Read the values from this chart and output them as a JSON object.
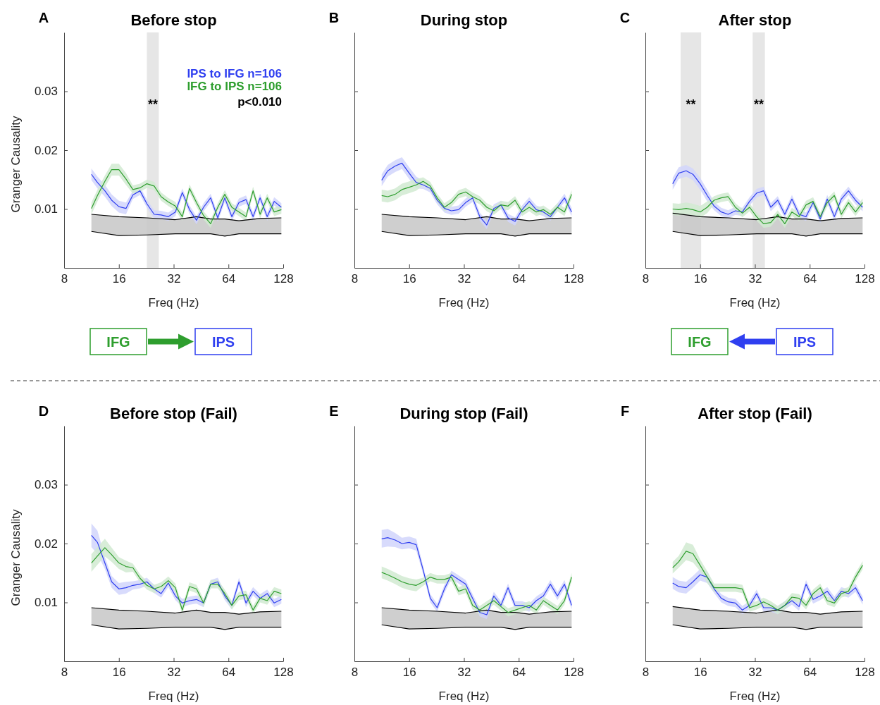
{
  "chart_data": [
    {
      "type": "line",
      "title": "Before stop",
      "xlabel": "Freq (Hz)",
      "ylabel": "Granger Causality",
      "xlim": [
        8,
        128
      ],
      "xticks": [
        8,
        16,
        32,
        64,
        128
      ],
      "ylim": [
        0,
        0.04
      ],
      "yticks": [
        0.01,
        0.02,
        0.03
      ],
      "log": "x",
      "legend": "top right",
      "x": [
        11.3,
        12.2,
        13.4,
        14.6,
        16,
        17.5,
        19.1,
        20.9,
        22.8,
        25,
        27.3,
        29.9,
        32.7,
        35.7,
        39.1,
        42.7,
        46.7,
        51.1,
        55.9,
        61.1,
        66.8,
        73.1,
        79.9,
        87.4,
        95.5,
        104.5,
        114.2,
        125
      ],
      "annotations": [
        "A",
        "**",
        "p<0.010",
        "IFG",
        "IPS"
      ],
      "bands": [
        {
          "axis": "x",
          "from": 22.8,
          "to": 26.5,
          "color": "#e6e6e6"
        }
      ],
      "series": [
        {
          "color": "#000000",
          "x": [
            11.3,
            16,
            22.8,
            32.7,
            42.7,
            51.1,
            61.1,
            73.1,
            95.5,
            125
          ],
          "values": [
            0.0091,
            0.0087,
            0.0085,
            0.0082,
            0.0087,
            0.0083,
            0.0083,
            0.008,
            0.0084,
            0.0085
          ],
          "lower": [
            0.0062,
            0.0055,
            0.0056,
            0.0058,
            0.0058,
            0.0058,
            0.0054,
            0.0058,
            0.0058,
            0.0058
          ],
          "upper": [
            0.0091,
            0.0087,
            0.0085,
            0.0082,
            0.0087,
            0.0083,
            0.0083,
            0.008,
            0.0084,
            0.0085
          ]
        },
        {
          "color": "#000000",
          "x": [
            11.3,
            16,
            22.8,
            32.7,
            42.7,
            51.1,
            61.1,
            73.1,
            95.5,
            125
          ],
          "values": [
            0.0062,
            0.0055,
            0.0056,
            0.0058,
            0.0058,
            0.0058,
            0.0054,
            0.0058,
            0.0058,
            0.0058
          ]
        },
        {
          "name": "IPS to IFG n=106",
          "color": "#2f3ff0",
          "values": [
            0.0159,
            0.0145,
            0.0131,
            0.0115,
            0.0104,
            0.0101,
            0.0124,
            0.0131,
            0.0109,
            0.0091,
            0.009,
            0.0087,
            0.0095,
            0.0128,
            0.0099,
            0.0081,
            0.0103,
            0.0119,
            0.0085,
            0.0119,
            0.0087,
            0.0111,
            0.0116,
            0.0087,
            0.0119,
            0.0087,
            0.0113,
            0.0103
          ],
          "lower": [
            0.0149,
            0.0135,
            0.0121,
            0.0105,
            0.0094,
            0.0091,
            0.0117,
            0.0124,
            0.0102,
            0.0084,
            0.0083,
            0.008,
            0.0088,
            0.0121,
            0.0092,
            0.0074,
            0.0096,
            0.0112,
            0.0078,
            0.0112,
            0.008,
            0.0104,
            0.0109,
            0.008,
            0.0112,
            0.008,
            0.0106,
            0.0096
          ],
          "upper": [
            0.0169,
            0.0155,
            0.0141,
            0.0125,
            0.0114,
            0.0111,
            0.0131,
            0.0138,
            0.0116,
            0.0098,
            0.0097,
            0.0094,
            0.0102,
            0.0135,
            0.0106,
            0.0088,
            0.011,
            0.0126,
            0.0092,
            0.0126,
            0.0094,
            0.0118,
            0.0123,
            0.0094,
            0.0126,
            0.0094,
            0.012,
            0.011
          ]
        },
        {
          "name": "IFG to IPS n=106",
          "color": "#2e9e2e",
          "values": [
            0.0101,
            0.0123,
            0.0147,
            0.0167,
            0.0167,
            0.0151,
            0.0133,
            0.0136,
            0.0143,
            0.0139,
            0.0121,
            0.0112,
            0.0105,
            0.0087,
            0.0135,
            0.0111,
            0.0089,
            0.0075,
            0.0103,
            0.0125,
            0.0103,
            0.0095,
            0.0087,
            0.0131,
            0.0091,
            0.0119,
            0.0095,
            0.0099
          ],
          "lower": [
            0.0091,
            0.0113,
            0.0137,
            0.0157,
            0.0157,
            0.0141,
            0.0126,
            0.0129,
            0.0136,
            0.0132,
            0.0114,
            0.0105,
            0.0098,
            0.008,
            0.0128,
            0.0104,
            0.0082,
            0.0068,
            0.0096,
            0.0118,
            0.0096,
            0.0088,
            0.008,
            0.0124,
            0.0084,
            0.0112,
            0.0088,
            0.0092
          ],
          "upper": [
            0.0111,
            0.0133,
            0.0157,
            0.0177,
            0.0177,
            0.0161,
            0.014,
            0.0143,
            0.015,
            0.0146,
            0.0128,
            0.0119,
            0.0112,
            0.0094,
            0.0142,
            0.0118,
            0.0096,
            0.0082,
            0.011,
            0.0132,
            0.011,
            0.0102,
            0.0094,
            0.0138,
            0.0098,
            0.0126,
            0.0102,
            0.0106
          ]
        }
      ]
    },
    {
      "type": "line",
      "title": "During stop",
      "xlabel": "Freq (Hz)",
      "xlim": [
        8,
        128
      ],
      "xticks": [
        8,
        16,
        32,
        64,
        128
      ],
      "ylim": [
        0,
        0.04
      ],
      "yticks": [
        0.01,
        0.02,
        0.03
      ],
      "log": "x",
      "tick_labels": "x",
      "x": [
        11.3,
        12.2,
        13.4,
        14.6,
        16,
        17.5,
        19.1,
        20.9,
        22.8,
        25,
        27.3,
        29.9,
        32.7,
        35.7,
        39.1,
        42.7,
        46.7,
        51.1,
        55.9,
        61.1,
        66.8,
        73.1,
        79.9,
        87.4,
        95.5,
        104.5,
        114.2,
        125
      ],
      "annotations": [
        "B"
      ],
      "series": [
        {
          "color": "#000000",
          "x": [
            11.3,
            16,
            22.8,
            32.7,
            42.7,
            51.1,
            61.1,
            73.1,
            95.5,
            125
          ],
          "values": [
            0.0091,
            0.0087,
            0.0085,
            0.0082,
            0.0087,
            0.0083,
            0.0083,
            0.008,
            0.0084,
            0.0085
          ],
          "lower": [
            0.0062,
            0.0055,
            0.0056,
            0.0058,
            0.0058,
            0.0058,
            0.0054,
            0.0058,
            0.0058,
            0.0058
          ],
          "upper": [
            0.0091,
            0.0087,
            0.0085,
            0.0082,
            0.0087,
            0.0083,
            0.0083,
            0.008,
            0.0084,
            0.0085
          ]
        },
        {
          "color": "#000000",
          "x": [
            11.3,
            16,
            22.8,
            32.7,
            42.7,
            51.1,
            61.1,
            73.1,
            95.5,
            125
          ],
          "values": [
            0.0062,
            0.0055,
            0.0056,
            0.0058,
            0.0058,
            0.0058,
            0.0054,
            0.0058,
            0.0058,
            0.0058
          ]
        },
        {
          "color": "#2f3ff0",
          "values": [
            0.0149,
            0.0165,
            0.0173,
            0.0178,
            0.0161,
            0.0145,
            0.0141,
            0.0135,
            0.0115,
            0.0101,
            0.0097,
            0.0099,
            0.0111,
            0.0119,
            0.0087,
            0.0073,
            0.0101,
            0.0107,
            0.0085,
            0.0079,
            0.0099,
            0.0113,
            0.0099,
            0.0095,
            0.0087,
            0.0103,
            0.0119,
            0.0095
          ],
          "lower": [
            0.0139,
            0.0155,
            0.0163,
            0.0168,
            0.0151,
            0.0135,
            0.0134,
            0.0128,
            0.0108,
            0.0094,
            0.009,
            0.0092,
            0.0104,
            0.0112,
            0.008,
            0.0066,
            0.0094,
            0.01,
            0.0078,
            0.0072,
            0.0092,
            0.0106,
            0.0092,
            0.0088,
            0.008,
            0.0096,
            0.0112,
            0.0088
          ],
          "upper": [
            0.0159,
            0.0175,
            0.0183,
            0.0188,
            0.0171,
            0.0155,
            0.0148,
            0.0142,
            0.0122,
            0.0108,
            0.0104,
            0.0106,
            0.0118,
            0.0126,
            0.0094,
            0.008,
            0.0108,
            0.0114,
            0.0092,
            0.0086,
            0.0106,
            0.012,
            0.0106,
            0.0102,
            0.0094,
            0.011,
            0.0126,
            0.0102
          ]
        },
        {
          "color": "#2e9e2e",
          "values": [
            0.0123,
            0.0121,
            0.0125,
            0.0133,
            0.0137,
            0.0141,
            0.0147,
            0.0139,
            0.0119,
            0.0103,
            0.0111,
            0.0125,
            0.0129,
            0.0121,
            0.0115,
            0.0103,
            0.0097,
            0.0107,
            0.0105,
            0.0115,
            0.0095,
            0.0103,
            0.0095,
            0.0099,
            0.0091,
            0.0103,
            0.0095,
            0.0125
          ],
          "lower": [
            0.0113,
            0.0111,
            0.0115,
            0.0123,
            0.0127,
            0.0131,
            0.014,
            0.0132,
            0.0112,
            0.0096,
            0.0104,
            0.0118,
            0.0122,
            0.0114,
            0.0108,
            0.0096,
            0.009,
            0.01,
            0.0098,
            0.0108,
            0.0088,
            0.0096,
            0.0088,
            0.0092,
            0.0084,
            0.0096,
            0.0088,
            0.0118
          ],
          "upper": [
            0.0133,
            0.0131,
            0.0135,
            0.0143,
            0.0147,
            0.0151,
            0.0154,
            0.0146,
            0.0126,
            0.011,
            0.0118,
            0.0132,
            0.0136,
            0.0128,
            0.0122,
            0.011,
            0.0104,
            0.0114,
            0.0112,
            0.0122,
            0.0102,
            0.011,
            0.0102,
            0.0106,
            0.0098,
            0.011,
            0.0102,
            0.0132
          ]
        }
      ]
    },
    {
      "type": "line",
      "title": "After stop",
      "xlabel": "Freq (Hz)",
      "xlim": [
        8,
        128
      ],
      "xticks": [
        8,
        16,
        32,
        64,
        128
      ],
      "ylim": [
        0,
        0.04
      ],
      "yticks": [
        0.01,
        0.02,
        0.03
      ],
      "log": "x",
      "tick_labels": "x",
      "x": [
        11.3,
        12.2,
        13.4,
        14.6,
        16,
        17.5,
        19.1,
        20.9,
        22.8,
        25,
        27.3,
        29.9,
        32.7,
        35.7,
        39.1,
        42.7,
        46.7,
        51.1,
        55.9,
        61.1,
        66.8,
        73.1,
        79.9,
        87.4,
        95.5,
        104.5,
        114.2,
        125
      ],
      "annotations": [
        "C",
        "**",
        "**",
        "IFG",
        "IPS"
      ],
      "bands": [
        {
          "axis": "x",
          "from": 12.5,
          "to": 16.2,
          "color": "#e6e6e6"
        },
        {
          "axis": "x",
          "from": 31.1,
          "to": 36.3,
          "color": "#e6e6e6"
        }
      ],
      "series": [
        {
          "color": "#000000",
          "x": [
            11.3,
            16,
            22.8,
            32.7,
            42.7,
            51.1,
            61.1,
            73.1,
            95.5,
            125
          ],
          "values": [
            0.0093,
            0.0087,
            0.0085,
            0.0082,
            0.0087,
            0.0083,
            0.0083,
            0.008,
            0.0084,
            0.0085
          ],
          "lower": [
            0.0062,
            0.0055,
            0.0056,
            0.0058,
            0.0058,
            0.0058,
            0.0054,
            0.0058,
            0.0058,
            0.0058
          ],
          "upper": [
            0.0093,
            0.0087,
            0.0085,
            0.0082,
            0.0087,
            0.0083,
            0.0083,
            0.008,
            0.0084,
            0.0085
          ]
        },
        {
          "color": "#000000",
          "x": [
            11.3,
            16,
            22.8,
            32.7,
            42.7,
            51.1,
            61.1,
            73.1,
            95.5,
            125
          ],
          "values": [
            0.0062,
            0.0055,
            0.0056,
            0.0058,
            0.0058,
            0.0058,
            0.0054,
            0.0058,
            0.0058,
            0.0058
          ]
        },
        {
          "color": "#2f3ff0",
          "values": [
            0.0143,
            0.0161,
            0.0165,
            0.0159,
            0.0143,
            0.0123,
            0.0105,
            0.0095,
            0.0091,
            0.0097,
            0.0095,
            0.0113,
            0.0127,
            0.0131,
            0.0103,
            0.0115,
            0.0091,
            0.0117,
            0.0091,
            0.0087,
            0.0111,
            0.0083,
            0.0117,
            0.0087,
            0.0117,
            0.0131,
            0.0115,
            0.0103
          ],
          "lower": [
            0.0133,
            0.0151,
            0.0155,
            0.0149,
            0.0133,
            0.0113,
            0.0098,
            0.0088,
            0.0084,
            0.009,
            0.0088,
            0.0106,
            0.012,
            0.0124,
            0.0096,
            0.0108,
            0.0084,
            0.011,
            0.0084,
            0.008,
            0.0104,
            0.0076,
            0.011,
            0.008,
            0.011,
            0.0124,
            0.0108,
            0.0096
          ],
          "upper": [
            0.0153,
            0.0171,
            0.0175,
            0.0169,
            0.0153,
            0.0133,
            0.0112,
            0.0102,
            0.0098,
            0.0104,
            0.0102,
            0.012,
            0.0134,
            0.0138,
            0.011,
            0.0122,
            0.0098,
            0.0124,
            0.0098,
            0.0094,
            0.0118,
            0.009,
            0.0124,
            0.0094,
            0.0124,
            0.0138,
            0.0122,
            0.011
          ]
        },
        {
          "color": "#2e9e2e",
          "values": [
            0.01,
            0.0099,
            0.0101,
            0.0099,
            0.0095,
            0.0103,
            0.0115,
            0.0119,
            0.0121,
            0.0103,
            0.0093,
            0.0103,
            0.0087,
            0.0075,
            0.0077,
            0.0091,
            0.0075,
            0.0095,
            0.0087,
            0.0107,
            0.0113,
            0.0087,
            0.0111,
            0.0123,
            0.0091,
            0.0111,
            0.0095,
            0.0111
          ],
          "lower": [
            0.009,
            0.0089,
            0.0091,
            0.0089,
            0.0085,
            0.0093,
            0.0108,
            0.0112,
            0.0114,
            0.0096,
            0.0086,
            0.0096,
            0.008,
            0.0068,
            0.007,
            0.0084,
            0.0068,
            0.0088,
            0.008,
            0.01,
            0.0106,
            0.008,
            0.0104,
            0.0116,
            0.0084,
            0.0104,
            0.0088,
            0.0104
          ],
          "upper": [
            0.011,
            0.0109,
            0.0111,
            0.0109,
            0.0105,
            0.0113,
            0.0122,
            0.0126,
            0.0128,
            0.011,
            0.01,
            0.011,
            0.0094,
            0.0082,
            0.0084,
            0.0098,
            0.0082,
            0.0102,
            0.0094,
            0.0114,
            0.012,
            0.0094,
            0.0118,
            0.013,
            0.0098,
            0.0118,
            0.0102,
            0.0118
          ]
        }
      ]
    },
    {
      "type": "line",
      "title": "Before stop (Fail)",
      "xlabel": "Freq (Hz)",
      "ylabel": "Granger Causality",
      "xlim": [
        8,
        128
      ],
      "xticks": [
        8,
        16,
        32,
        64,
        128
      ],
      "ylim": [
        0,
        0.04
      ],
      "yticks": [
        0.01,
        0.02,
        0.03
      ],
      "log": "x",
      "x": [
        11.3,
        12.2,
        13.4,
        14.6,
        16,
        17.5,
        19.1,
        20.9,
        22.8,
        25,
        27.3,
        29.9,
        32.7,
        35.7,
        39.1,
        42.7,
        46.7,
        51.1,
        55.9,
        61.1,
        66.8,
        73.1,
        79.9,
        87.4,
        95.5,
        104.5,
        114.2,
        125
      ],
      "annotations": [
        "D"
      ],
      "series": [
        {
          "color": "#000000",
          "x": [
            11.3,
            16,
            22.8,
            32.7,
            42.7,
            51.1,
            61.1,
            73.1,
            95.5,
            125
          ],
          "values": [
            0.0091,
            0.0087,
            0.0085,
            0.0082,
            0.0087,
            0.0083,
            0.0083,
            0.008,
            0.0084,
            0.0085
          ],
          "lower": [
            0.0062,
            0.0055,
            0.0056,
            0.0058,
            0.0058,
            0.0058,
            0.0054,
            0.0058,
            0.0058,
            0.0058
          ],
          "upper": [
            0.0091,
            0.0087,
            0.0085,
            0.0082,
            0.0087,
            0.0083,
            0.0083,
            0.008,
            0.0084,
            0.0085
          ]
        },
        {
          "color": "#000000",
          "x": [
            11.3,
            16,
            22.8,
            32.7,
            42.7,
            51.1,
            61.1,
            73.1,
            95.5,
            125
          ],
          "values": [
            0.0062,
            0.0055,
            0.0056,
            0.0058,
            0.0058,
            0.0058,
            0.0054,
            0.0058,
            0.0058,
            0.0058
          ]
        },
        {
          "color": "#2f3ff0",
          "values": [
            0.0214,
            0.0202,
            0.0167,
            0.0135,
            0.0123,
            0.0125,
            0.0129,
            0.0131,
            0.0135,
            0.0123,
            0.0115,
            0.0133,
            0.0111,
            0.0099,
            0.0103,
            0.0105,
            0.0099,
            0.0131,
            0.0135,
            0.0111,
            0.0095,
            0.0135,
            0.0099,
            0.0119,
            0.0107,
            0.0115,
            0.0099,
            0.0105
          ],
          "lower": [
            0.0194,
            0.0182,
            0.0157,
            0.0125,
            0.0113,
            0.0115,
            0.0122,
            0.0124,
            0.0128,
            0.0116,
            0.0108,
            0.0126,
            0.0104,
            0.0092,
            0.0096,
            0.0098,
            0.0092,
            0.0124,
            0.0128,
            0.0104,
            0.0088,
            0.0128,
            0.0092,
            0.0112,
            0.01,
            0.0108,
            0.0092,
            0.0098
          ],
          "upper": [
            0.0234,
            0.0222,
            0.0177,
            0.0145,
            0.0133,
            0.0135,
            0.0136,
            0.0138,
            0.0142,
            0.013,
            0.0122,
            0.014,
            0.0118,
            0.0106,
            0.011,
            0.0112,
            0.0106,
            0.0138,
            0.0142,
            0.0118,
            0.0102,
            0.0142,
            0.0106,
            0.0126,
            0.0114,
            0.0122,
            0.0106,
            0.0112
          ]
        },
        {
          "color": "#2e9e2e",
          "values": [
            0.0167,
            0.0179,
            0.0193,
            0.0181,
            0.0167,
            0.0161,
            0.0159,
            0.0141,
            0.0129,
            0.0123,
            0.0127,
            0.0137,
            0.0125,
            0.0087,
            0.0127,
            0.0123,
            0.0099,
            0.0131,
            0.0131,
            0.0115,
            0.0095,
            0.0111,
            0.0113,
            0.0087,
            0.0107,
            0.0103,
            0.0119,
            0.0115
          ],
          "lower": [
            0.0152,
            0.0164,
            0.0178,
            0.0169,
            0.0157,
            0.0151,
            0.0152,
            0.0134,
            0.0122,
            0.0116,
            0.012,
            0.013,
            0.0118,
            0.008,
            0.012,
            0.0116,
            0.0092,
            0.0124,
            0.0124,
            0.0108,
            0.0088,
            0.0104,
            0.0106,
            0.008,
            0.01,
            0.0096,
            0.0112,
            0.0108
          ],
          "upper": [
            0.0182,
            0.0194,
            0.0208,
            0.0193,
            0.0177,
            0.0171,
            0.0166,
            0.0148,
            0.0136,
            0.013,
            0.0134,
            0.0144,
            0.0132,
            0.0094,
            0.0134,
            0.013,
            0.0106,
            0.0138,
            0.0138,
            0.0122,
            0.0102,
            0.0118,
            0.012,
            0.0094,
            0.0114,
            0.011,
            0.0126,
            0.0122
          ]
        }
      ]
    },
    {
      "type": "line",
      "title": "During stop (Fail)",
      "xlabel": "Freq (Hz)",
      "xlim": [
        8,
        128
      ],
      "xticks": [
        8,
        16,
        32,
        64,
        128
      ],
      "ylim": [
        0,
        0.04
      ],
      "yticks": [
        0.01,
        0.02,
        0.03
      ],
      "log": "x",
      "tick_labels": "x",
      "x": [
        11.3,
        12.2,
        13.4,
        14.6,
        16,
        17.5,
        19.1,
        20.9,
        22.8,
        25,
        27.3,
        29.9,
        32.7,
        35.7,
        39.1,
        42.7,
        46.7,
        51.1,
        55.9,
        61.1,
        66.8,
        73.1,
        79.9,
        87.4,
        95.5,
        104.5,
        114.2,
        125
      ],
      "annotations": [
        "E"
      ],
      "series": [
        {
          "color": "#000000",
          "x": [
            11.3,
            16,
            22.8,
            32.7,
            42.7,
            51.1,
            61.1,
            73.1,
            95.5,
            125
          ],
          "values": [
            0.0091,
            0.0087,
            0.0085,
            0.0082,
            0.0087,
            0.0083,
            0.0083,
            0.008,
            0.0084,
            0.0085
          ],
          "lower": [
            0.0062,
            0.0055,
            0.0056,
            0.0058,
            0.0058,
            0.0058,
            0.0054,
            0.0058,
            0.0058,
            0.0058
          ],
          "upper": [
            0.0091,
            0.0087,
            0.0085,
            0.0082,
            0.0087,
            0.0083,
            0.0083,
            0.008,
            0.0084,
            0.0085
          ]
        },
        {
          "color": "#000000",
          "x": [
            11.3,
            16,
            22.8,
            32.7,
            42.7,
            51.1,
            61.1,
            73.1,
            95.5,
            125
          ],
          "values": [
            0.0062,
            0.0055,
            0.0056,
            0.0058,
            0.0058,
            0.0058,
            0.0054,
            0.0058,
            0.0058,
            0.0058
          ]
        },
        {
          "color": "#2f3ff0",
          "values": [
            0.0208,
            0.021,
            0.0206,
            0.02,
            0.0202,
            0.0198,
            0.0155,
            0.0107,
            0.0091,
            0.0123,
            0.0147,
            0.0139,
            0.0131,
            0.0107,
            0.0083,
            0.0079,
            0.0111,
            0.0095,
            0.0125,
            0.0095,
            0.0095,
            0.0091,
            0.0103,
            0.0111,
            0.0131,
            0.0111,
            0.0131,
            0.0095
          ],
          "lower": [
            0.0193,
            0.0195,
            0.0194,
            0.019,
            0.0192,
            0.0188,
            0.0148,
            0.01,
            0.0084,
            0.0116,
            0.014,
            0.0132,
            0.0124,
            0.01,
            0.0076,
            0.0072,
            0.0104,
            0.0088,
            0.0118,
            0.0088,
            0.0088,
            0.0084,
            0.0096,
            0.0104,
            0.0124,
            0.0104,
            0.0124,
            0.0088
          ],
          "upper": [
            0.0223,
            0.0225,
            0.0218,
            0.021,
            0.0212,
            0.0208,
            0.0162,
            0.0114,
            0.0098,
            0.013,
            0.0154,
            0.0146,
            0.0138,
            0.0114,
            0.009,
            0.0086,
            0.0118,
            0.0102,
            0.0132,
            0.0102,
            0.0102,
            0.0098,
            0.011,
            0.0118,
            0.0138,
            0.0118,
            0.0138,
            0.0102
          ]
        },
        {
          "color": "#2e9e2e",
          "values": [
            0.0151,
            0.0147,
            0.0141,
            0.0135,
            0.0131,
            0.0129,
            0.0135,
            0.0143,
            0.0139,
            0.0139,
            0.0143,
            0.0119,
            0.0123,
            0.0095,
            0.0087,
            0.0095,
            0.0103,
            0.0093,
            0.0083,
            0.0087,
            0.0091,
            0.0095,
            0.0087,
            0.0103,
            0.0095,
            0.0087,
            0.0103,
            0.0143
          ],
          "lower": [
            0.0141,
            0.0137,
            0.0131,
            0.0125,
            0.0121,
            0.0119,
            0.0128,
            0.0136,
            0.0132,
            0.0132,
            0.0136,
            0.0112,
            0.0116,
            0.0088,
            0.008,
            0.0088,
            0.0096,
            0.0086,
            0.0076,
            0.008,
            0.0084,
            0.0088,
            0.008,
            0.0096,
            0.0088,
            0.008,
            0.0096,
            0.0136
          ],
          "upper": [
            0.0161,
            0.0157,
            0.0151,
            0.0145,
            0.0141,
            0.0139,
            0.0142,
            0.015,
            0.0146,
            0.0146,
            0.015,
            0.0126,
            0.013,
            0.0102,
            0.0094,
            0.0102,
            0.011,
            0.01,
            0.009,
            0.0094,
            0.0098,
            0.0102,
            0.0094,
            0.011,
            0.0102,
            0.0094,
            0.011,
            0.015
          ]
        }
      ]
    },
    {
      "type": "line",
      "title": "After stop (Fail)",
      "xlabel": "Freq (Hz)",
      "xlim": [
        8,
        128
      ],
      "xticks": [
        8,
        16,
        32,
        64,
        128
      ],
      "ylim": [
        0,
        0.04
      ],
      "yticks": [
        0.01,
        0.02,
        0.03
      ],
      "log": "x",
      "tick_labels": "x",
      "x": [
        11.3,
        12.2,
        13.4,
        14.6,
        16,
        17.5,
        19.1,
        20.9,
        22.8,
        25,
        27.3,
        29.9,
        32.7,
        35.7,
        39.1,
        42.7,
        46.7,
        51.1,
        55.9,
        61.1,
        66.8,
        73.1,
        79.9,
        87.4,
        95.5,
        104.5,
        114.2,
        125
      ],
      "annotations": [
        "F"
      ],
      "series": [
        {
          "color": "#000000",
          "x": [
            11.3,
            16,
            22.8,
            32.7,
            42.7,
            51.1,
            61.1,
            73.1,
            95.5,
            125
          ],
          "values": [
            0.0093,
            0.0087,
            0.0085,
            0.0082,
            0.0087,
            0.0083,
            0.0083,
            0.008,
            0.0084,
            0.0085
          ],
          "lower": [
            0.0062,
            0.0055,
            0.0056,
            0.0058,
            0.0058,
            0.0058,
            0.0054,
            0.0058,
            0.0058,
            0.0058
          ],
          "upper": [
            0.0093,
            0.0087,
            0.0085,
            0.0082,
            0.0087,
            0.0083,
            0.0083,
            0.008,
            0.0084,
            0.0085
          ]
        },
        {
          "color": "#000000",
          "x": [
            11.3,
            16,
            22.8,
            32.7,
            42.7,
            51.1,
            61.1,
            73.1,
            95.5,
            125
          ],
          "values": [
            0.0062,
            0.0055,
            0.0056,
            0.0058,
            0.0058,
            0.0058,
            0.0054,
            0.0058,
            0.0058,
            0.0058
          ]
        },
        {
          "color": "#2f3ff0",
          "values": [
            0.0133,
            0.0127,
            0.0125,
            0.0135,
            0.0147,
            0.0143,
            0.0123,
            0.0107,
            0.0101,
            0.0099,
            0.0087,
            0.0095,
            0.0115,
            0.0091,
            0.0091,
            0.0087,
            0.0095,
            0.0103,
            0.0093,
            0.0131,
            0.0105,
            0.0111,
            0.0119,
            0.0103,
            0.0119,
            0.0115,
            0.0125,
            0.0103
          ],
          "lower": [
            0.0123,
            0.0117,
            0.0115,
            0.0125,
            0.0137,
            0.0133,
            0.0116,
            0.01,
            0.0094,
            0.0092,
            0.008,
            0.0088,
            0.0108,
            0.0084,
            0.0084,
            0.008,
            0.0088,
            0.0096,
            0.0086,
            0.0124,
            0.0098,
            0.0104,
            0.0112,
            0.0096,
            0.0112,
            0.0108,
            0.0118,
            0.0096
          ],
          "upper": [
            0.0143,
            0.0137,
            0.0135,
            0.0145,
            0.0157,
            0.0153,
            0.013,
            0.0114,
            0.0108,
            0.0106,
            0.0094,
            0.0102,
            0.0122,
            0.0098,
            0.0098,
            0.0094,
            0.0102,
            0.011,
            0.01,
            0.0138,
            0.0112,
            0.0118,
            0.0126,
            0.011,
            0.0126,
            0.0122,
            0.0132,
            0.011
          ]
        },
        {
          "color": "#2e9e2e",
          "values": [
            0.0159,
            0.0169,
            0.0187,
            0.0183,
            0.0163,
            0.0143,
            0.0125,
            0.0125,
            0.0125,
            0.0125,
            0.0123,
            0.0091,
            0.0095,
            0.0101,
            0.0095,
            0.0087,
            0.0095,
            0.0109,
            0.0107,
            0.0095,
            0.0115,
            0.0125,
            0.0103,
            0.0099,
            0.0115,
            0.0119,
            0.0143,
            0.0163
          ],
          "lower": [
            0.0149,
            0.0159,
            0.0172,
            0.0168,
            0.0153,
            0.0133,
            0.0118,
            0.0118,
            0.0118,
            0.0118,
            0.0116,
            0.0084,
            0.0088,
            0.0094,
            0.0088,
            0.008,
            0.0088,
            0.0102,
            0.01,
            0.0088,
            0.0108,
            0.0118,
            0.0096,
            0.0092,
            0.0108,
            0.0112,
            0.0136,
            0.0156
          ],
          "upper": [
            0.0169,
            0.0179,
            0.0202,
            0.0198,
            0.0173,
            0.0153,
            0.0132,
            0.0132,
            0.0132,
            0.0132,
            0.013,
            0.0098,
            0.0102,
            0.0108,
            0.0102,
            0.0094,
            0.0102,
            0.0116,
            0.0114,
            0.0102,
            0.0122,
            0.0132,
            0.011,
            0.0106,
            0.0122,
            0.0126,
            0.015,
            0.017
          ]
        }
      ]
    }
  ]
}
